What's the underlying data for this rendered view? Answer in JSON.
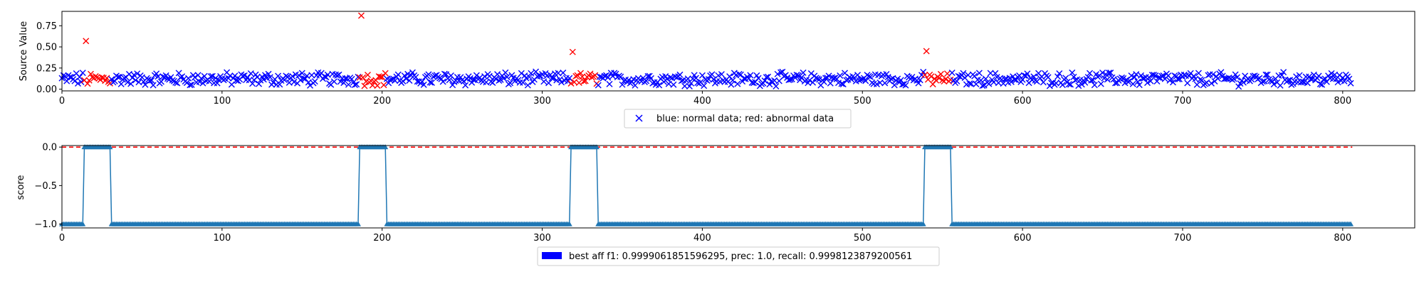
{
  "chart_data": [
    {
      "type": "scatter",
      "ylabel": "Source Value",
      "xlim": [
        0,
        845
      ],
      "ylim": [
        -0.02,
        0.92
      ],
      "x_ticks": [
        0,
        100,
        200,
        300,
        400,
        500,
        600,
        700,
        800
      ],
      "y_ticks": [
        0.0,
        0.25,
        0.5,
        0.75
      ],
      "y_tick_labels": [
        "0.00",
        "0.25",
        "0.50",
        "0.75"
      ],
      "grid": false,
      "legend_position": "below",
      "legend_label": "blue: normal data; red: abnormal data",
      "colors": {
        "normal": "#0000ff",
        "abnormal": "#ff0000"
      },
      "n_points": 806,
      "normal_level": 0.12,
      "abnormal_segments": [
        [
          14,
          30
        ],
        [
          186,
          202
        ],
        [
          318,
          334
        ],
        [
          539,
          555
        ]
      ],
      "outliers": [
        {
          "x": 15,
          "y": 0.57
        },
        {
          "x": 187,
          "y": 0.87
        },
        {
          "x": 319,
          "y": 0.44
        },
        {
          "x": 540,
          "y": 0.45
        }
      ]
    },
    {
      "type": "line",
      "ylabel": "score",
      "xlim": [
        0,
        845
      ],
      "ylim": [
        -1.05,
        0.02
      ],
      "x_ticks": [
        0,
        100,
        200,
        300,
        400,
        500,
        600,
        700,
        800
      ],
      "y_ticks": [
        -1.0,
        -0.5,
        0.0
      ],
      "y_tick_labels": [
        "−1.0",
        "−0.5",
        "0.0"
      ],
      "grid": false,
      "marker": "triangle-up",
      "series_color": "#1f77b4",
      "reference_line": {
        "y": 0.0,
        "color": "#ff0000",
        "style": "dashed",
        "x_range": [
          0,
          806
        ]
      },
      "score_levels": {
        "normal": -1.0,
        "abnormal": 0.0
      },
      "abnormal_segments": [
        [
          14,
          30
        ],
        [
          186,
          202
        ],
        [
          318,
          334
        ],
        [
          539,
          555
        ]
      ],
      "legend_position": "below",
      "legend_label": "best aff f1: 0.9999061851596295, prec: 1.0, recall: 0.9998123879200561",
      "legend_color": "#0000ff"
    }
  ]
}
